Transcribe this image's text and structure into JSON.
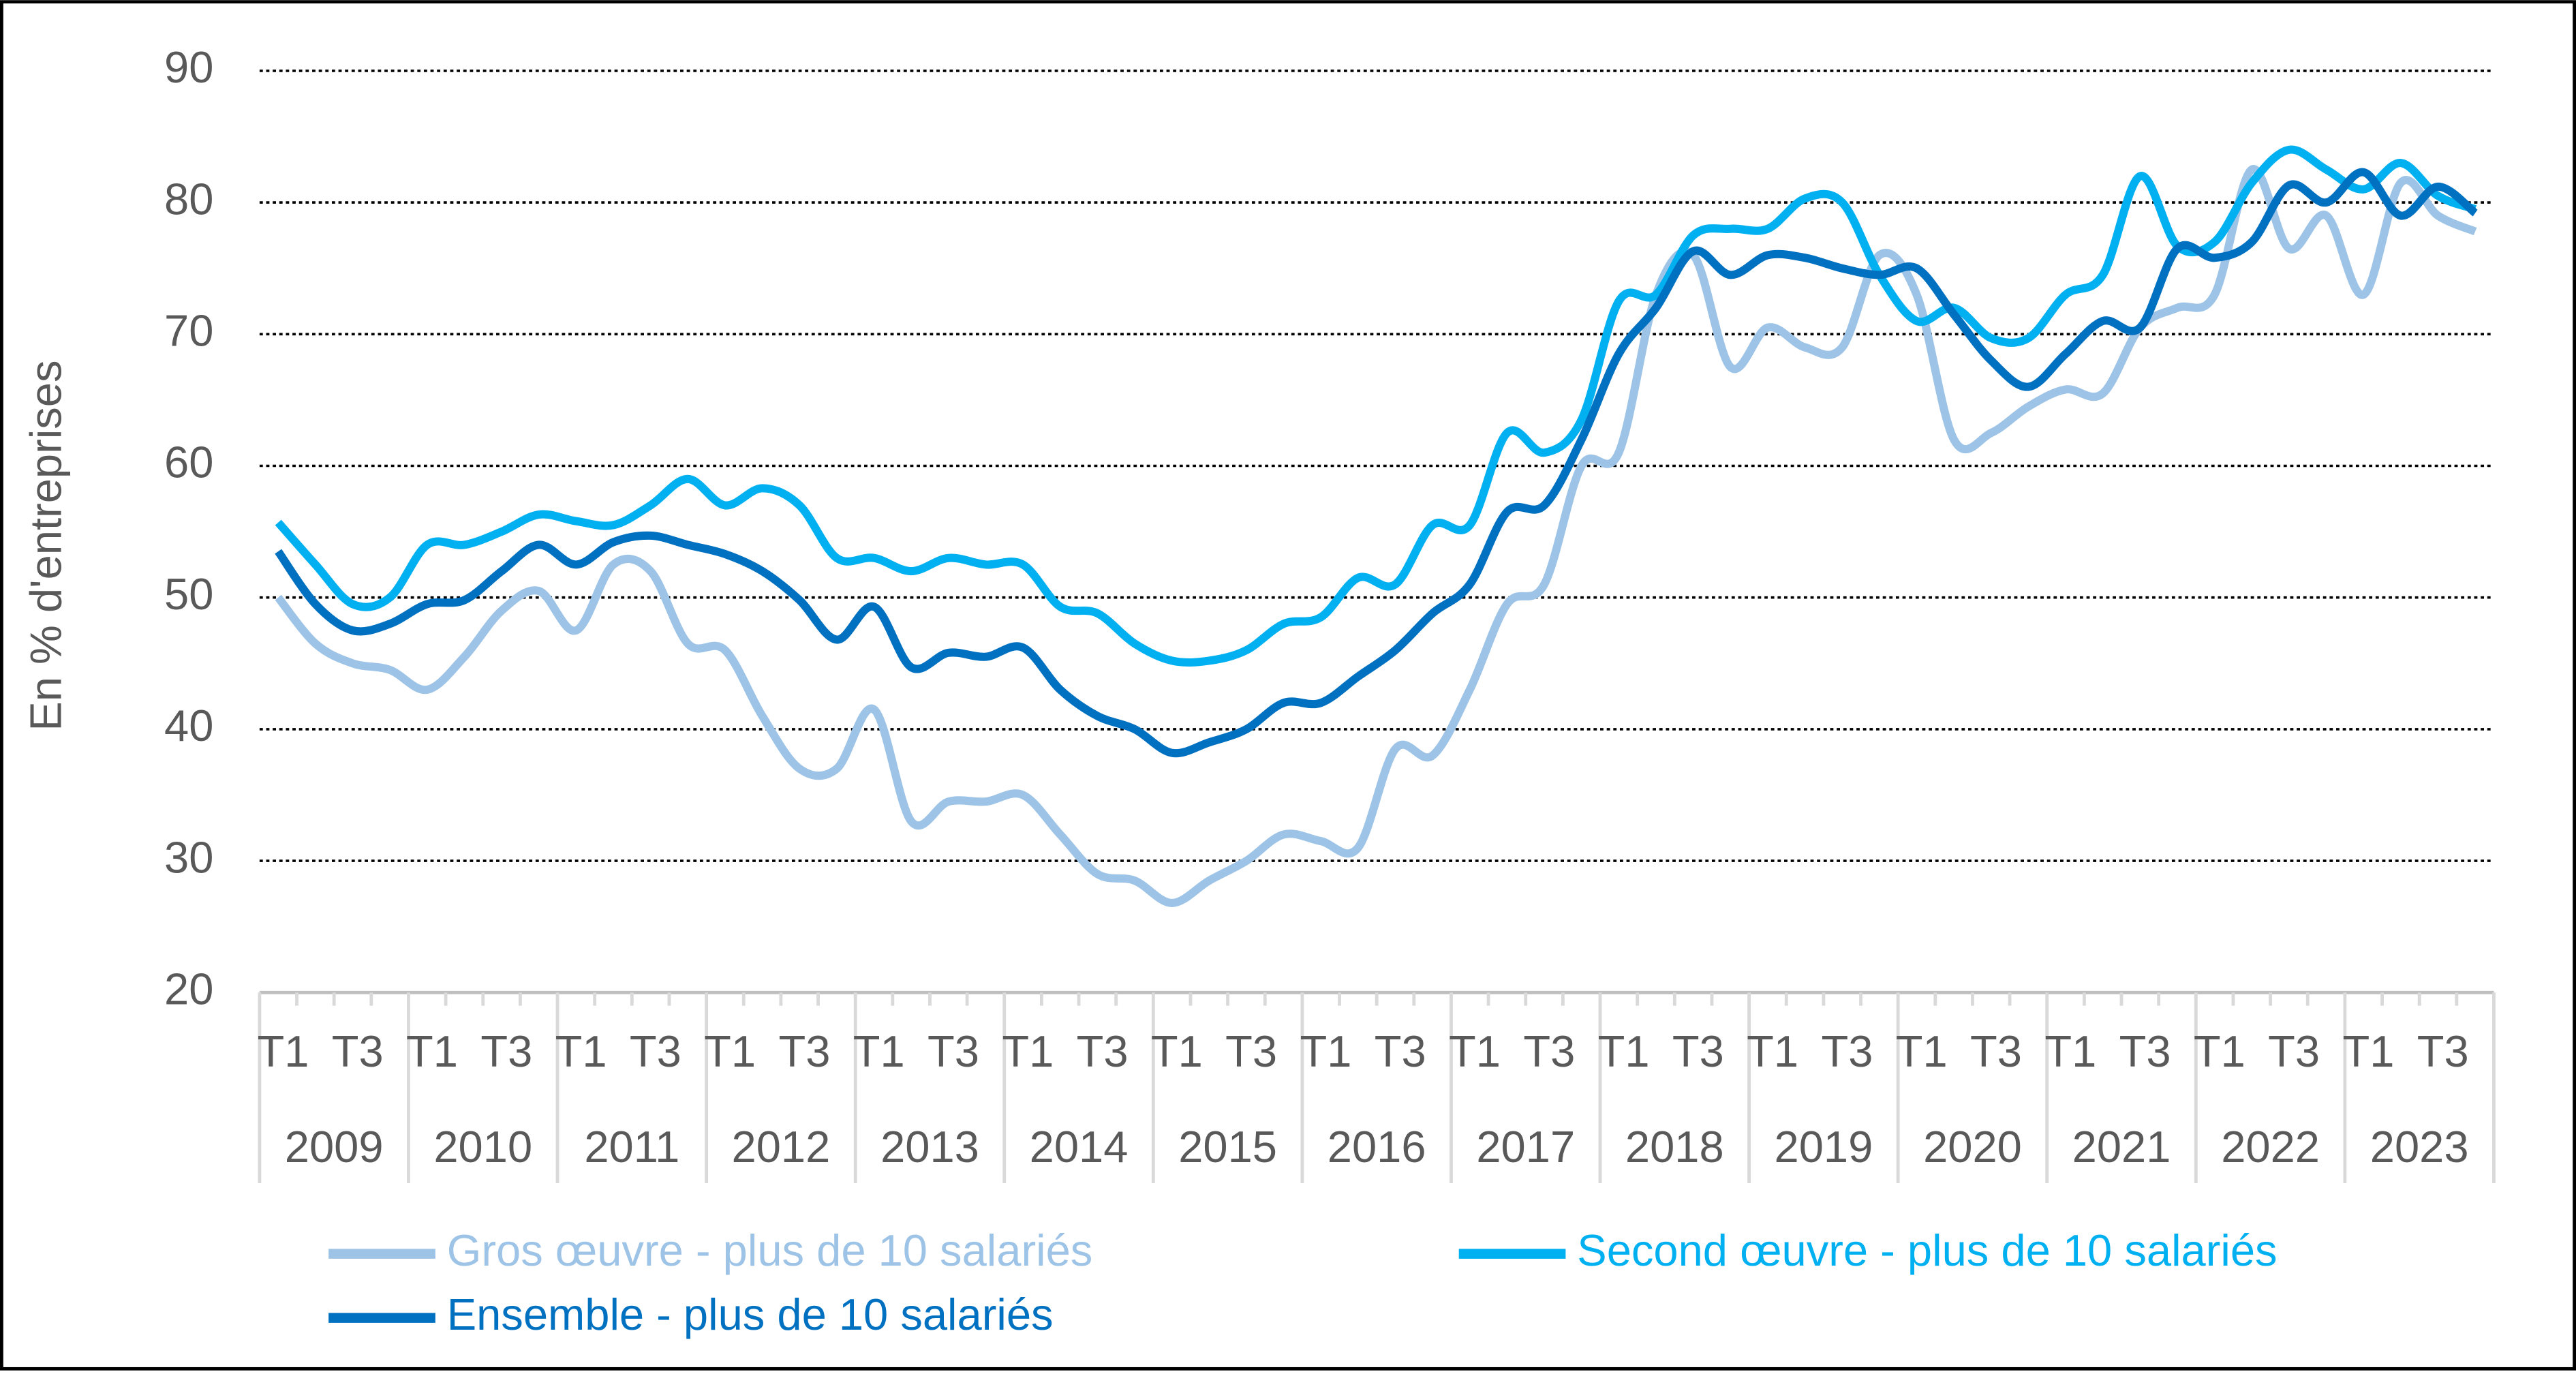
{
  "chart_data": {
    "type": "line",
    "ylabel": "En % d'entreprises",
    "categories": [
      "T1",
      null,
      "T3",
      null,
      "T1",
      null,
      "T3",
      null,
      "T1",
      null,
      "T3",
      null,
      "T1",
      null,
      "T3",
      null,
      "T1",
      null,
      "T3",
      null,
      "T1",
      null,
      "T3",
      null,
      "T1",
      null,
      "T3",
      null,
      "T1",
      null,
      "T3",
      null,
      "T1",
      null,
      "T3",
      null,
      "T1",
      null,
      "T3",
      null,
      "T1",
      null,
      "T3",
      null,
      "T1",
      null,
      "T3",
      null,
      "T1",
      null,
      "T3",
      null,
      "T1",
      null,
      "T3",
      null,
      "T1",
      null,
      "T3",
      null
    ],
    "years": [
      "2009",
      "2010",
      "2011",
      "2012",
      "2013",
      "2014",
      "2015",
      "2016",
      "2017",
      "2018",
      "2019",
      "2020",
      "2021",
      "2022",
      "2023"
    ],
    "ylim": [
      20,
      90
    ],
    "yticks": [
      20,
      30,
      40,
      50,
      60,
      70,
      80,
      90
    ],
    "grid": true,
    "series": [
      {
        "name": "Gros œuvre - plus de 10 salariés",
        "color": "#9dc3e6",
        "values": [
          50,
          46.5,
          45,
          44.5,
          43,
          45.5,
          49,
          50.5,
          47.5,
          52.5,
          52,
          46.5,
          46,
          41,
          37,
          37,
          41.5,
          33,
          34.5,
          34.5,
          35,
          32,
          29,
          28.5,
          26.8,
          28.5,
          30,
          32,
          31.5,
          31,
          38.5,
          38,
          43,
          49.5,
          51,
          60,
          61,
          73,
          76,
          67.5,
          70.5,
          69,
          69,
          76,
          73,
          62,
          62.5,
          64.5,
          65.8,
          65.5,
          70.5,
          72,
          73,
          82.5,
          76.5,
          79,
          73,
          81.5,
          79,
          77.8
        ]
      },
      {
        "name": "Second œuvre - plus de 10 salariés",
        "color": "#00b0f0",
        "values": [
          55.7,
          52.5,
          49.5,
          50,
          54,
          54,
          55,
          56.3,
          55.8,
          55.5,
          57,
          59,
          57,
          58.3,
          57,
          53,
          53,
          52,
          53,
          52.5,
          52.5,
          49.3,
          48.8,
          46.5,
          45.2,
          45.2,
          46,
          48,
          48.5,
          51.5,
          51,
          55.5,
          55.5,
          62.5,
          61,
          63.5,
          72.5,
          73,
          77.5,
          78,
          78,
          80.3,
          80,
          74.5,
          71,
          72,
          69.7,
          69.7,
          73,
          74.5,
          82,
          76.7,
          77,
          81.5,
          84,
          82.5,
          81,
          83,
          80.5,
          79.5
        ]
      },
      {
        "name": "Ensemble - plus de 10 salariés",
        "color": "#0070c0",
        "values": [
          53.5,
          49.5,
          47.5,
          48,
          49.5,
          49.8,
          52,
          54,
          52.5,
          54.2,
          54.7,
          54,
          53.3,
          52,
          49.8,
          46.8,
          49.3,
          44.7,
          45.8,
          45.5,
          46.2,
          43,
          41,
          40,
          38.2,
          39,
          40,
          42,
          42,
          44,
          46,
          48.8,
          51,
          56.5,
          57,
          62,
          68.5,
          72,
          76.3,
          74.5,
          76,
          75.8,
          75,
          74.5,
          75,
          71.5,
          68,
          66,
          68.5,
          71,
          70.5,
          76.5,
          75.8,
          77,
          81.3,
          80,
          82.3,
          79,
          81.2,
          79.2
        ]
      }
    ]
  }
}
